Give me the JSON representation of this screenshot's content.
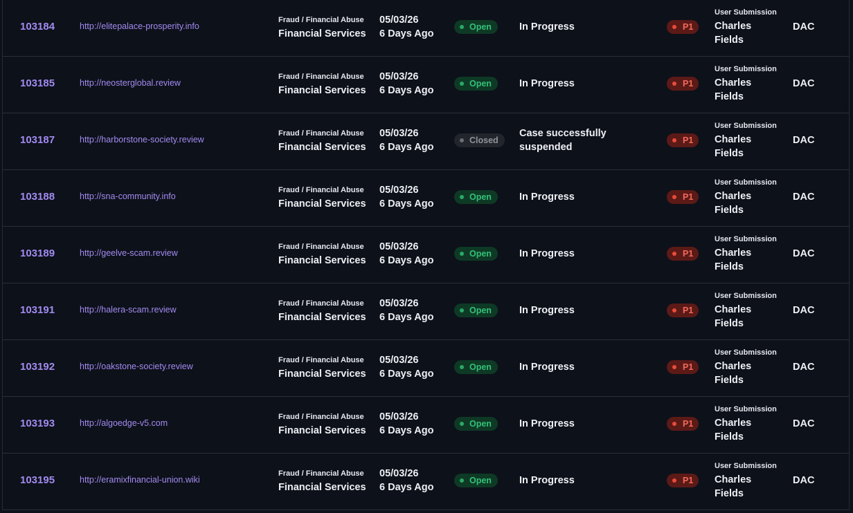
{
  "rows": [
    {
      "id": "103184",
      "url": "http://elitepalace-prosperity.info",
      "category": "Fraud / Financial Abuse",
      "subcategory": "Financial Services",
      "date": "05/03/26",
      "ago": "6 Days Ago",
      "status": "Open",
      "progress": "In Progress",
      "priority": "P1",
      "source": "User Submission",
      "reporter": "Charles Fields",
      "team": "DAC"
    },
    {
      "id": "103185",
      "url": "http://neosterglobal.review",
      "category": "Fraud / Financial Abuse",
      "subcategory": "Financial Services",
      "date": "05/03/26",
      "ago": "6 Days Ago",
      "status": "Open",
      "progress": "In Progress",
      "priority": "P1",
      "source": "User Submission",
      "reporter": "Charles Fields",
      "team": "DAC"
    },
    {
      "id": "103187",
      "url": "http://harborstone-society.review",
      "category": "Fraud / Financial Abuse",
      "subcategory": "Financial Services",
      "date": "05/03/26",
      "ago": "6 Days Ago",
      "status": "Closed",
      "progress": "Case successfully suspended",
      "priority": "P1",
      "source": "User Submission",
      "reporter": "Charles Fields",
      "team": "DAC"
    },
    {
      "id": "103188",
      "url": "http://sna-community.info",
      "category": "Fraud / Financial Abuse",
      "subcategory": "Financial Services",
      "date": "05/03/26",
      "ago": "6 Days Ago",
      "status": "Open",
      "progress": "In Progress",
      "priority": "P1",
      "source": "User Submission",
      "reporter": "Charles Fields",
      "team": "DAC"
    },
    {
      "id": "103189",
      "url": "http://geelve-scam.review",
      "category": "Fraud / Financial Abuse",
      "subcategory": "Financial Services",
      "date": "05/03/26",
      "ago": "6 Days Ago",
      "status": "Open",
      "progress": "In Progress",
      "priority": "P1",
      "source": "User Submission",
      "reporter": "Charles Fields",
      "team": "DAC"
    },
    {
      "id": "103191",
      "url": "http://halera-scam.review",
      "category": "Fraud / Financial Abuse",
      "subcategory": "Financial Services",
      "date": "05/03/26",
      "ago": "6 Days Ago",
      "status": "Open",
      "progress": "In Progress",
      "priority": "P1",
      "source": "User Submission",
      "reporter": "Charles Fields",
      "team": "DAC"
    },
    {
      "id": "103192",
      "url": "http://oakstone-society.review",
      "category": "Fraud / Financial Abuse",
      "subcategory": "Financial Services",
      "date": "05/03/26",
      "ago": "6 Days Ago",
      "status": "Open",
      "progress": "In Progress",
      "priority": "P1",
      "source": "User Submission",
      "reporter": "Charles Fields",
      "team": "DAC"
    },
    {
      "id": "103193",
      "url": "http://algoedge-v5.com",
      "category": "Fraud / Financial Abuse",
      "subcategory": "Financial Services",
      "date": "05/03/26",
      "ago": "6 Days Ago",
      "status": "Open",
      "progress": "In Progress",
      "priority": "P1",
      "source": "User Submission",
      "reporter": "Charles Fields",
      "team": "DAC"
    },
    {
      "id": "103195",
      "url": "http://eramixfinancial-union.wiki",
      "category": "Fraud / Financial Abuse",
      "subcategory": "Financial Services",
      "date": "05/03/26",
      "ago": "6 Days Ago",
      "status": "Open",
      "progress": "In Progress",
      "priority": "P1",
      "source": "User Submission",
      "reporter": "Charles Fields",
      "team": "DAC"
    }
  ],
  "colors": {
    "background": "#0d111a",
    "link": "#a28bf0",
    "open_badge": "#0e3a25",
    "open_text": "#35c079",
    "closed_badge": "#22252b",
    "priority_badge": "#5c1a17",
    "priority_text": "#f06a5d"
  }
}
